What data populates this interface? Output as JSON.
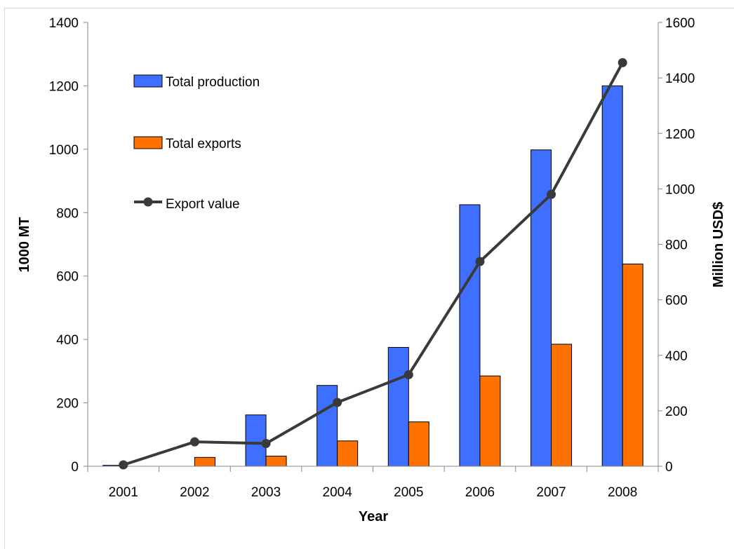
{
  "chart_data": {
    "type": "bar",
    "categories": [
      "2001",
      "2002",
      "2003",
      "2004",
      "2005",
      "2006",
      "2007",
      "2008"
    ],
    "series": [
      {
        "name": "Total production",
        "kind": "bar",
        "axis": "left",
        "color": "#3f6fff",
        "values": [
          3,
          0,
          162,
          255,
          375,
          825,
          998,
          1200
        ]
      },
      {
        "name": "Total exports",
        "kind": "bar",
        "axis": "left",
        "color": "#ff7200",
        "values": [
          0,
          28,
          32,
          80,
          140,
          285,
          385,
          638
        ]
      },
      {
        "name": "Export value",
        "kind": "line",
        "axis": "right",
        "color": "#3a3a3a",
        "values": [
          5,
          88,
          82,
          230,
          330,
          738,
          980,
          1455
        ]
      }
    ],
    "xlabel": "Year",
    "ylabel": "1000 MT",
    "y2label": "Million USD$",
    "ylim": [
      0,
      1400
    ],
    "y2lim": [
      0,
      1600
    ],
    "yticks": [
      "0",
      "200",
      "400",
      "600",
      "800",
      "1000",
      "1200",
      "1400"
    ],
    "y2ticks": [
      "0",
      "200",
      "400",
      "600",
      "800",
      "1000",
      "1200",
      "1400",
      "1600"
    ],
    "grid": false,
    "legend_position": "top-left"
  }
}
